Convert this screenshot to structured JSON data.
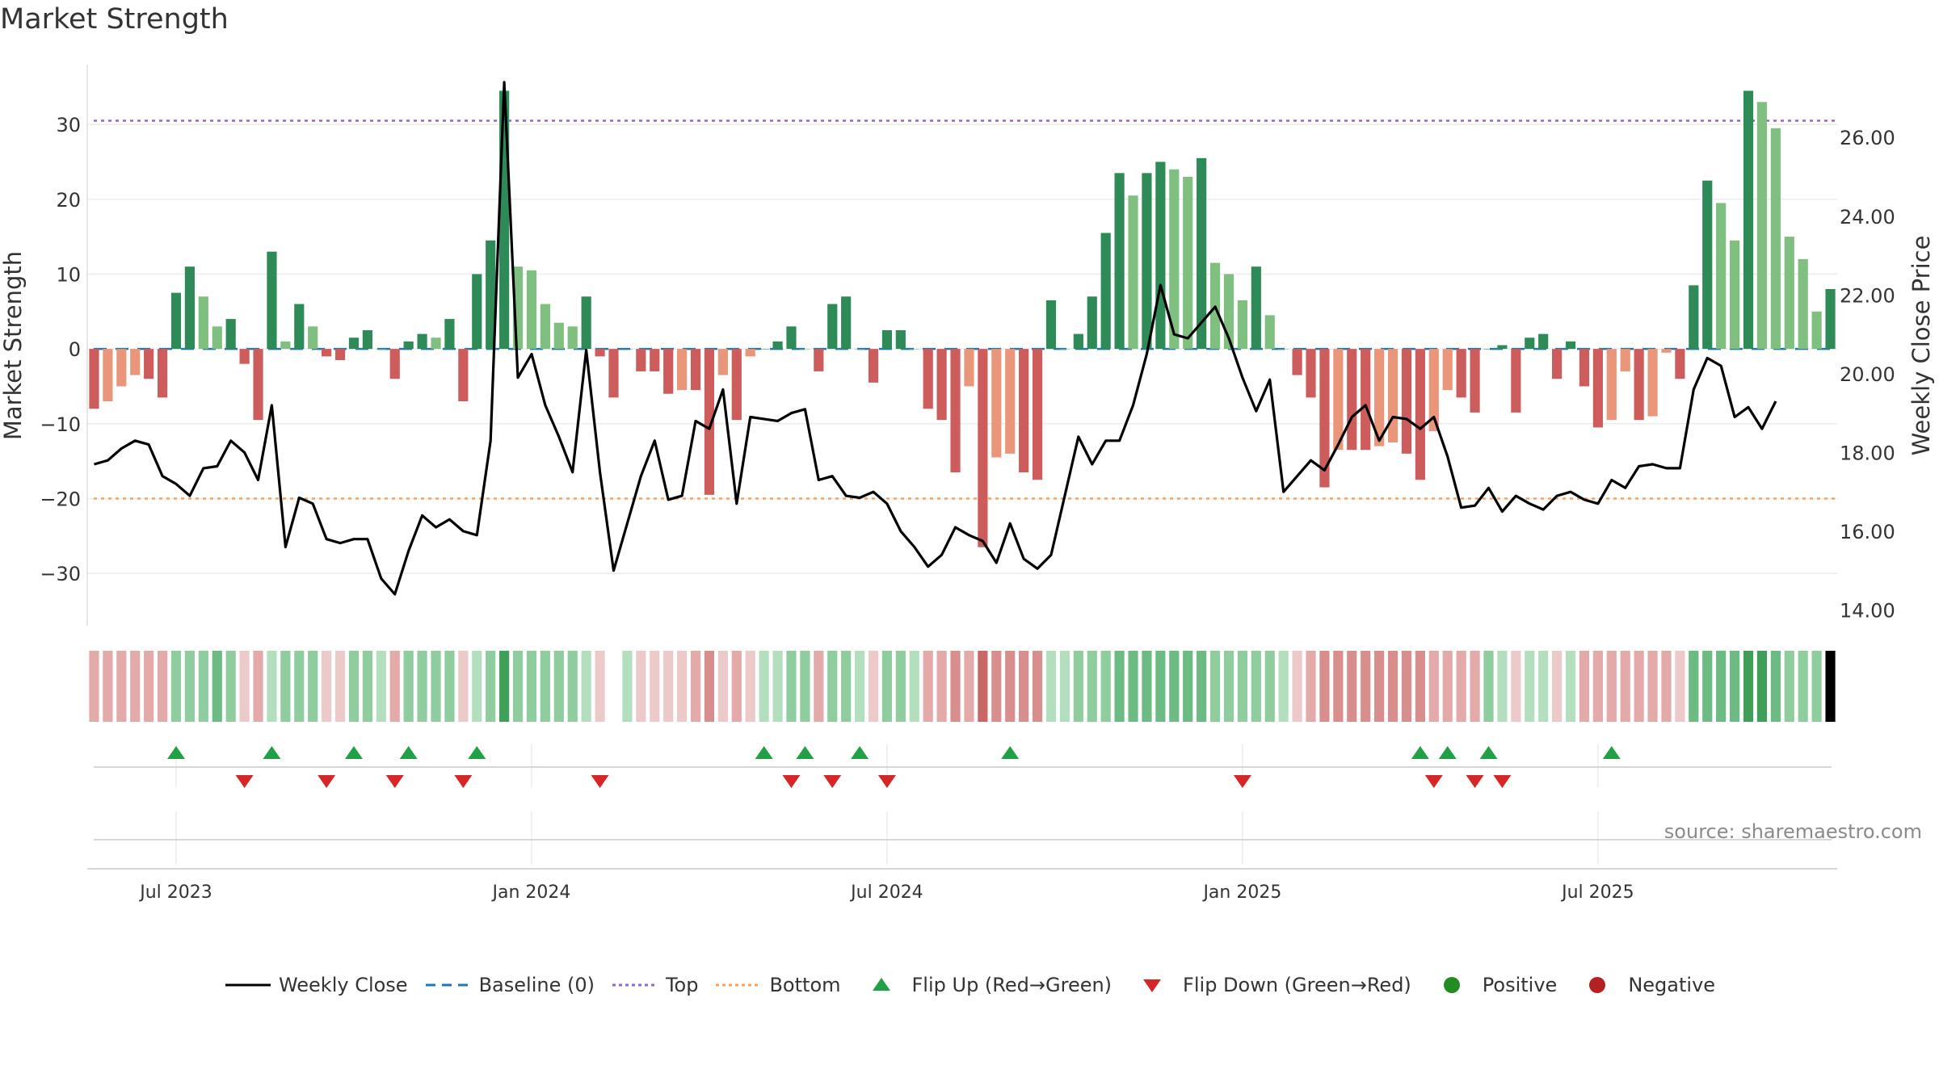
{
  "page_title": "Market Strength",
  "source": "source: sharemaestro.com",
  "colors": {
    "pos_strong": "#2e8b57",
    "pos_light": "#7fbf7f",
    "neg_strong": "#cd5c5c",
    "neg_light": "#e9967a",
    "close_line": "#000000",
    "baseline": "#1f77b4",
    "top": "#9467bd",
    "bottom": "#f4a460",
    "flip_up": "#22a046",
    "flip_down": "#d62728",
    "positive": "#228b22",
    "negative": "#b22222"
  },
  "chart_data": {
    "type": "bar",
    "title": "Market Strength",
    "ylabel": "Market Strength",
    "y2label": "Weekly Close Price",
    "ylim": [
      -37,
      38
    ],
    "y2lim": [
      13.6,
      27.85
    ],
    "yticks": [
      -30,
      -20,
      -10,
      0,
      10,
      20,
      30
    ],
    "yticklabels": [
      "−30",
      "−20",
      "−10",
      "0",
      "10",
      "20",
      "30"
    ],
    "y2ticks": [
      14,
      16,
      18,
      20,
      22,
      24,
      26
    ],
    "y2ticklabels": [
      "14.00",
      "16.00",
      "18.00",
      "20.00",
      "22.00",
      "24.00",
      "26.00"
    ],
    "xticks": [
      6,
      32,
      58,
      84,
      110
    ],
    "xticklabels": [
      "Jul 2023",
      "Jan 2024",
      "Jul 2024",
      "Jan 2025",
      "Jul 2025"
    ],
    "reference_lines": {
      "top": 30.5,
      "bottom": -20,
      "baseline": 0
    },
    "strength": [
      -8,
      -7,
      -5,
      -3.5,
      -4,
      -6.5,
      7.5,
      11,
      7,
      3,
      4,
      -2,
      -9.5,
      13,
      1,
      6,
      3,
      -1,
      -1.5,
      1.5,
      2.5,
      0,
      -4,
      1,
      2,
      1.5,
      4,
      -7,
      10,
      14.5,
      34.5,
      11,
      10.5,
      6,
      3.5,
      3,
      7,
      -1,
      -6.5,
      0,
      -3,
      -3,
      -6,
      -5.5,
      -5.5,
      -19.5,
      -3.5,
      -9.5,
      -1,
      0,
      1,
      3,
      0,
      -3,
      6,
      7,
      0,
      -4.5,
      2.5,
      2.5,
      0,
      -8,
      -9.5,
      -16.5,
      -5,
      -26.5,
      -14.5,
      -14,
      -16.5,
      -17.5,
      6.5,
      0,
      2,
      7,
      15.5,
      23.5,
      20.5,
      23.5,
      25,
      24,
      23,
      25.5,
      11.5,
      10,
      6.5,
      11,
      4.5,
      0,
      -3.5,
      -6.5,
      -18.5,
      -13.5,
      -13.5,
      -13.5,
      -13,
      -12.5,
      -14,
      -17.5,
      -11,
      -5.5,
      -6.5,
      -8.5,
      0,
      0.5,
      -8.5,
      1.5,
      2,
      -4,
      1,
      -5,
      -10.5,
      -9.5,
      -3,
      -9.5,
      -9,
      -0.5,
      -4,
      8.5,
      22.5,
      19.5,
      14.5,
      34.5,
      33,
      29.5,
      15,
      12,
      5,
      8
    ],
    "weekly_close": [
      17.7,
      17.8,
      18.1,
      18.3,
      18.2,
      17.4,
      17.2,
      16.9,
      17.6,
      17.65,
      18.3,
      18.0,
      17.3,
      19.2,
      15.6,
      16.85,
      16.7,
      15.8,
      15.7,
      15.8,
      15.8,
      14.8,
      14.4,
      15.5,
      16.4,
      16.1,
      16.3,
      16.0,
      15.9,
      18.3,
      27.4,
      19.9,
      20.5,
      19.2,
      18.4,
      17.5,
      20.6,
      17.5,
      15.0,
      16.2,
      17.4,
      18.3,
      16.8,
      16.9,
      18.8,
      18.6,
      19.6,
      16.7,
      18.9,
      18.85,
      18.8,
      19.0,
      19.1,
      17.3,
      17.4,
      16.9,
      16.85,
      17.0,
      16.7,
      16.0,
      15.6,
      15.1,
      15.4,
      16.1,
      15.9,
      15.75,
      15.2,
      16.2,
      15.3,
      15.05,
      15.4,
      16.9,
      18.4,
      17.7,
      18.3,
      18.3,
      19.2,
      20.5,
      22.25,
      21.0,
      20.9,
      21.3,
      21.7,
      20.9,
      19.9,
      19.05,
      19.85,
      17.0,
      17.4,
      17.8,
      17.55,
      18.2,
      18.9,
      19.2,
      18.3,
      18.9,
      18.85,
      18.6,
      18.9,
      17.9,
      16.6,
      16.65,
      17.1,
      16.5,
      16.9,
      16.7,
      16.55,
      16.9,
      17.0,
      16.8,
      16.7,
      17.3,
      17.1,
      17.65,
      17.7,
      17.6,
      17.6,
      19.6,
      20.4,
      20.2,
      18.9,
      19.15,
      18.6,
      19.3
    ]
  },
  "color_strip_shade": [
    2,
    2,
    2,
    2,
    2,
    2,
    2,
    2,
    2,
    3,
    2,
    1,
    2,
    1,
    2,
    2,
    2,
    1,
    1,
    2,
    2,
    1,
    2,
    2,
    2,
    2,
    2,
    1,
    1,
    2,
    4,
    2,
    2,
    2,
    2,
    2,
    1,
    1,
    -1,
    1,
    1,
    1,
    1,
    1,
    2,
    3,
    1,
    2,
    1,
    1,
    1,
    2,
    2,
    2,
    2,
    2,
    1,
    1,
    2,
    2,
    1,
    2,
    2,
    3,
    2,
    4,
    3,
    3,
    3,
    3,
    1,
    1,
    2,
    2,
    2,
    3,
    3,
    3,
    3,
    3,
    3,
    3,
    2,
    2,
    2,
    2,
    2,
    1,
    1,
    2,
    3,
    3,
    3,
    3,
    3,
    3,
    3,
    3,
    2,
    2,
    2,
    2,
    2,
    1,
    1,
    1,
    1,
    1,
    1,
    2,
    2,
    2,
    2,
    2,
    2,
    2,
    1,
    3,
    3,
    3,
    3,
    4,
    4,
    3,
    2,
    2,
    2
  ],
  "flips": {
    "up": [
      6,
      13,
      19,
      23,
      28,
      49,
      52,
      56,
      67,
      97,
      99,
      102,
      111
    ],
    "down": [
      11,
      17,
      22,
      27,
      37,
      51,
      54,
      58,
      84,
      98,
      101,
      103
    ]
  },
  "legend": [
    {
      "type": "line-solid",
      "label": "Weekly Close"
    },
    {
      "type": "line-dash",
      "label": "Baseline (0)"
    },
    {
      "type": "line-dot-top",
      "label": "Top"
    },
    {
      "type": "line-dot-bottom",
      "label": "Bottom"
    },
    {
      "type": "tri-up",
      "label": "Flip Up (Red→Green)"
    },
    {
      "type": "tri-down",
      "label": "Flip Down (Green→Red)"
    },
    {
      "type": "dot-pos",
      "label": "Positive"
    },
    {
      "type": "dot-neg",
      "label": "Negative"
    }
  ]
}
